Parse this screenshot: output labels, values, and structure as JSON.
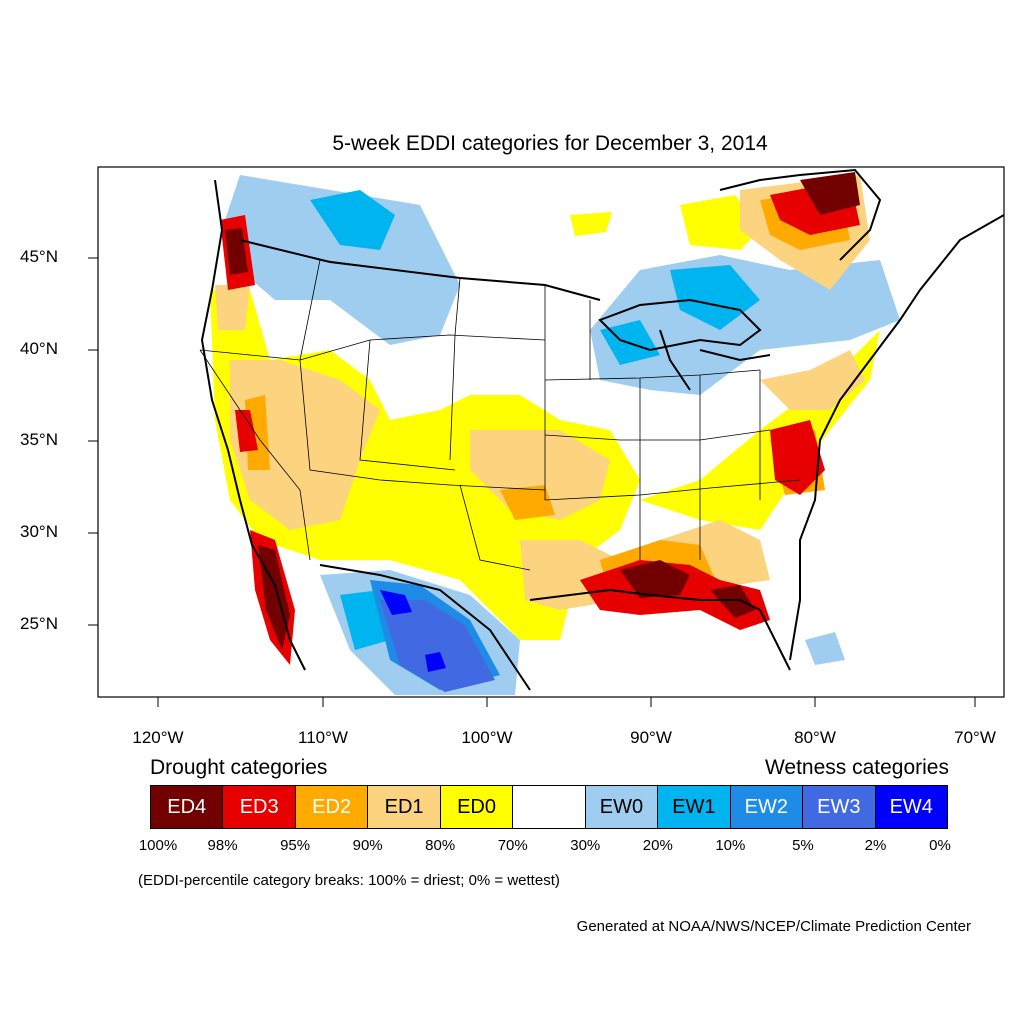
{
  "title": "5-week EDDI categories for December 3, 2014",
  "lat_labels": [
    "45°N",
    "40°N",
    "35°N",
    "30°N",
    "25°N"
  ],
  "lon_labels": [
    "120°W",
    "110°W",
    "100°W",
    "90°W",
    "80°W",
    "70°W"
  ],
  "legend": {
    "drought_heading": "Drought categories",
    "wetness_heading": "Wetness categories",
    "categories": [
      {
        "label": "ED4",
        "color": "#730000",
        "text_color": "#ffffff"
      },
      {
        "label": "ED3",
        "color": "#e60000",
        "text_color": "#ffffff"
      },
      {
        "label": "ED2",
        "color": "#ffaa00",
        "text_color": "#ffffff"
      },
      {
        "label": "ED1",
        "color": "#fcd37f",
        "text_color": "#000000"
      },
      {
        "label": "ED0",
        "color": "#ffff00",
        "text_color": "#000000"
      },
      {
        "label": "",
        "color": "#ffffff",
        "text_color": "#000000"
      },
      {
        "label": "EW0",
        "color": "#9ecdf0",
        "text_color": "#000000"
      },
      {
        "label": "EW1",
        "color": "#00b4f0",
        "text_color": "#000000"
      },
      {
        "label": "EW2",
        "color": "#1e8ce6",
        "text_color": "#ffffff"
      },
      {
        "label": "EW3",
        "color": "#4169e1",
        "text_color": "#ffffff"
      },
      {
        "label": "EW4",
        "color": "#0000ff",
        "text_color": "#ffffff"
      }
    ],
    "breaks": [
      "100%",
      "98%",
      "95%",
      "90%",
      "80%",
      "70%",
      "30%",
      "20%",
      "10%",
      "5%",
      "2%",
      "0%"
    ],
    "note": "(EDDI-percentile category breaks: 100% = driest; 0% = wettest)"
  },
  "credit": "Generated at NOAA/NWS/NCEP/Climate Prediction Center"
}
